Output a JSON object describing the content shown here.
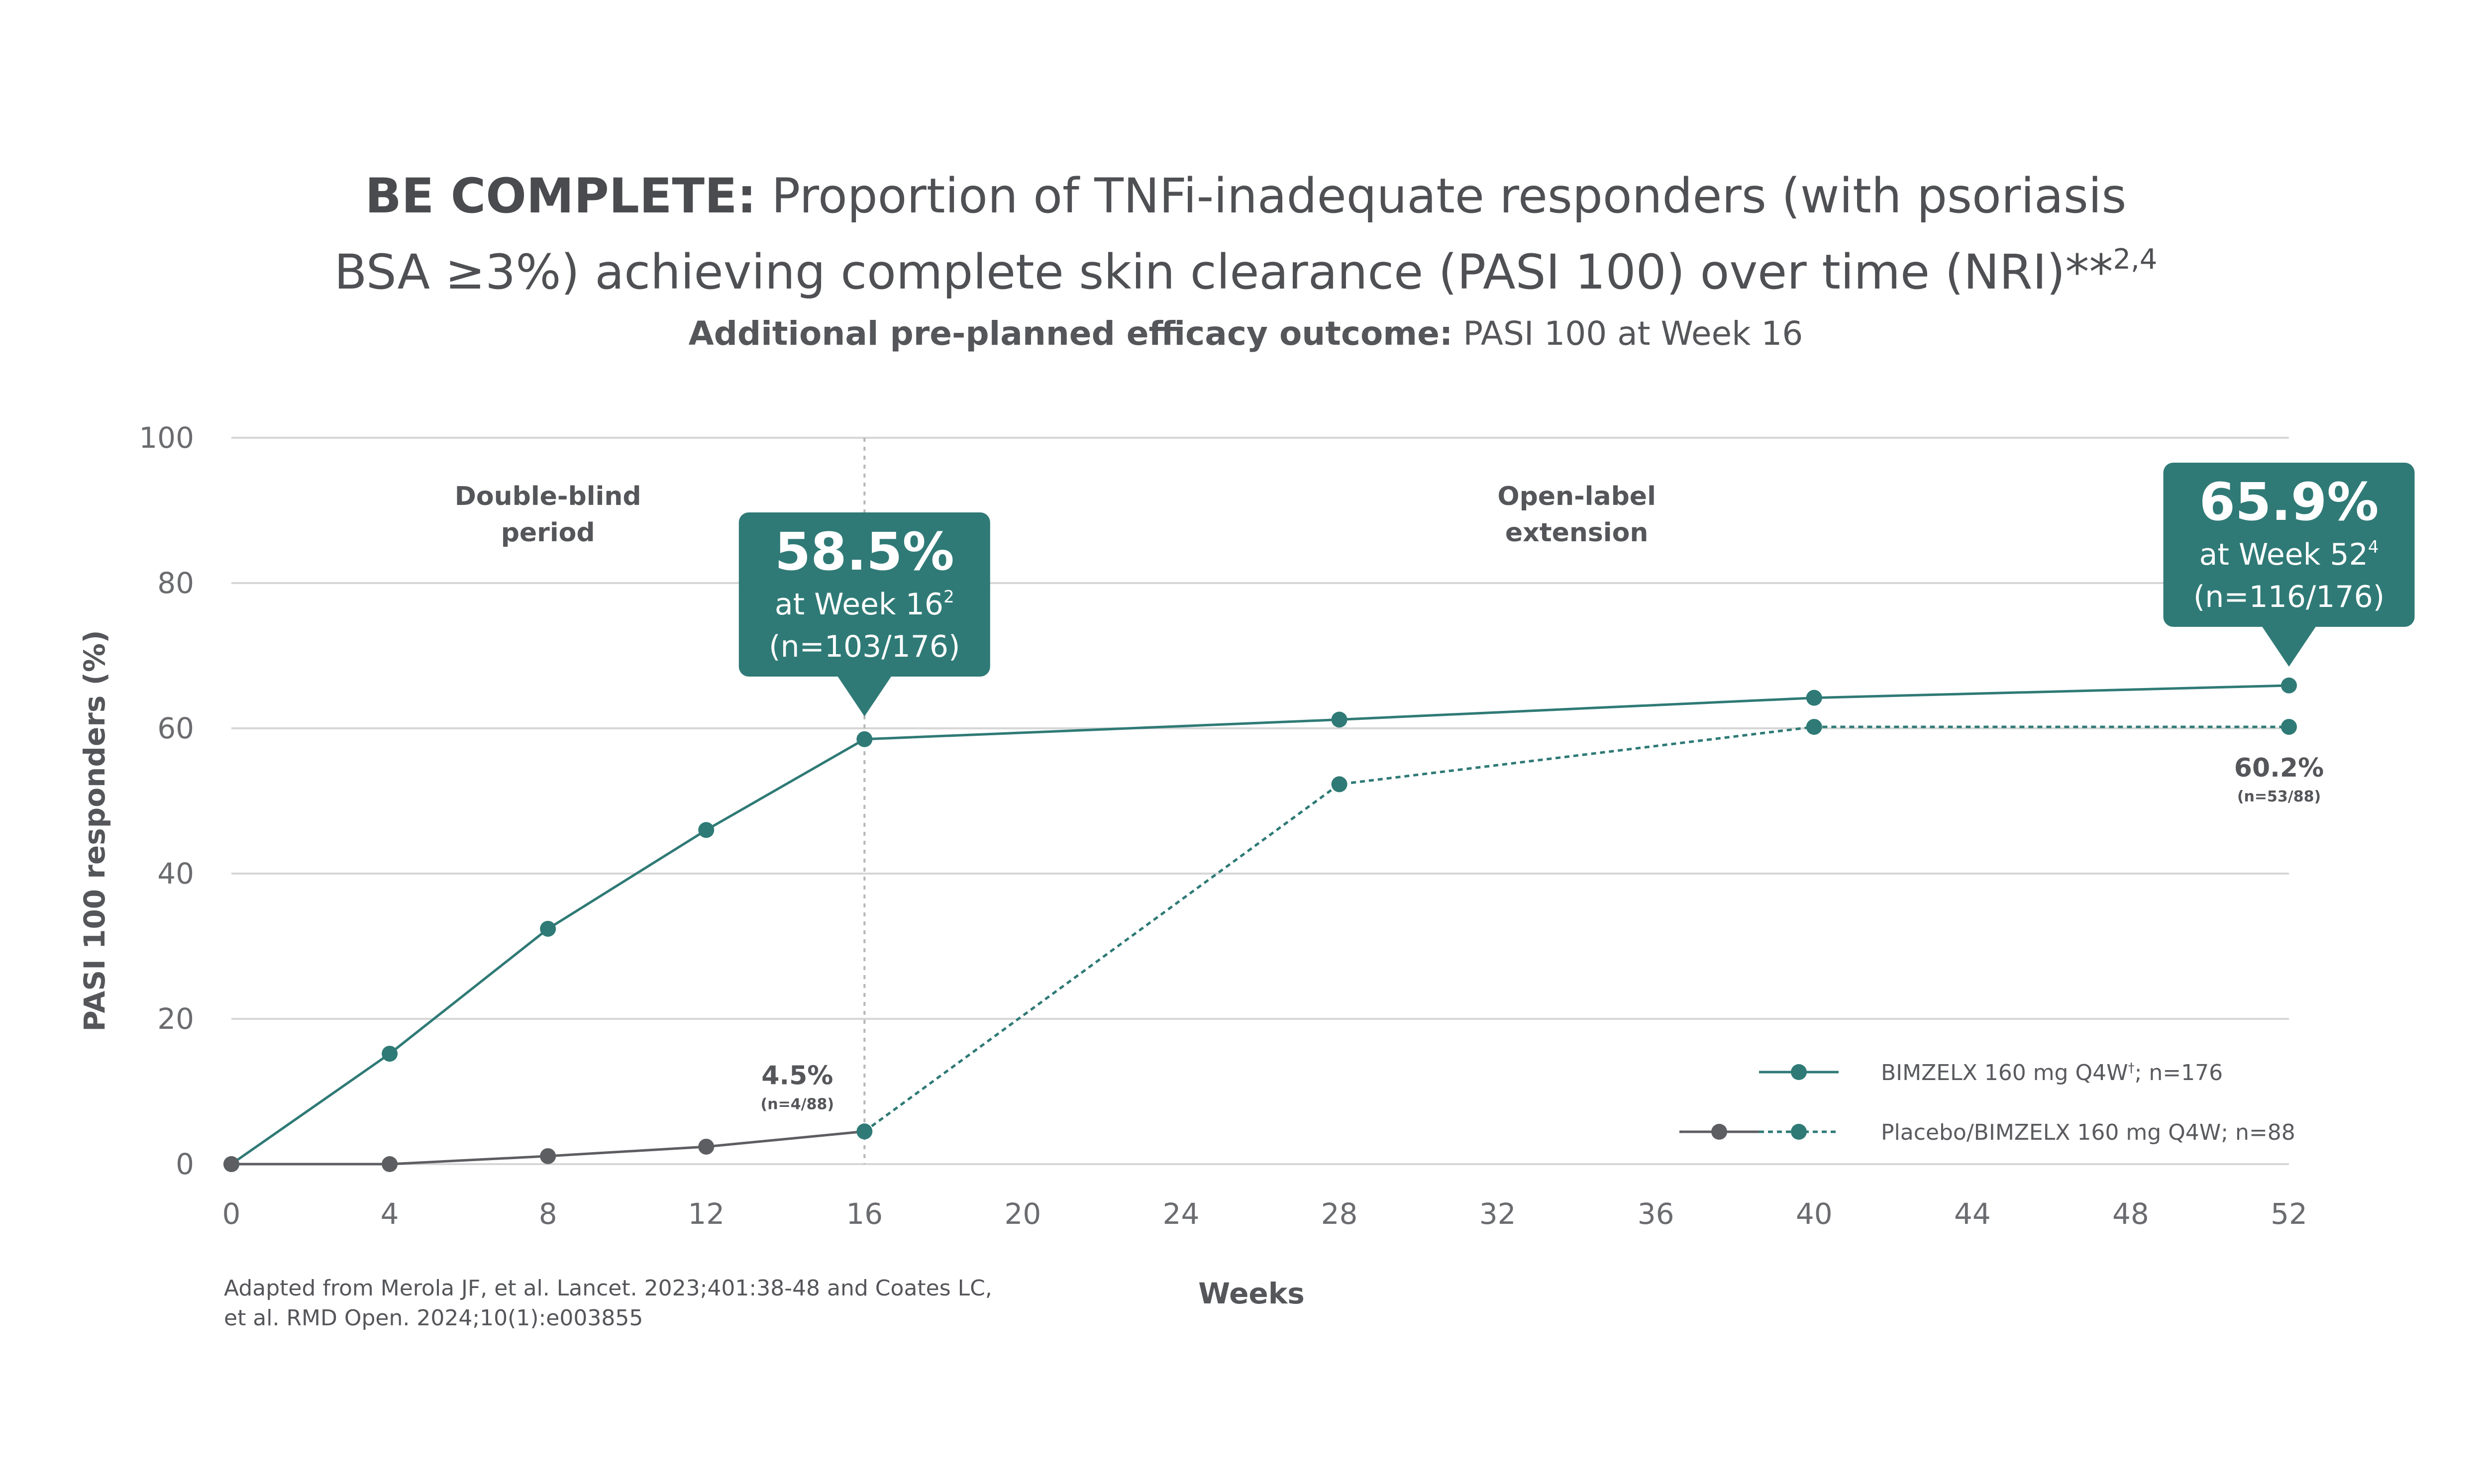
{
  "title": {
    "bold_part": "BE COMPLETE:",
    "line1_rest": "Proportion of TNFi-inadequate responders (with psoriasis",
    "line2": "BSA ≥3%) achieving complete skin clearance (PASI 100) over time (NRI)**",
    "line2_sup": "2,4"
  },
  "subtitle": {
    "bold_part": "Additional pre-planned efficacy outcome:",
    "rest": "PASI 100 at Week 16"
  },
  "colors": {
    "teal": "#2f7a76",
    "gray": "#5d5e62",
    "grid": "#d6d6d6",
    "callout_bg": "#2f7a76"
  },
  "chart_data": {
    "type": "line",
    "xlabel": "Weeks",
    "ylabel": "PASI 100 responders (%)",
    "xlim": [
      0,
      52
    ],
    "ylim": [
      0,
      100
    ],
    "x_ticks": [
      0,
      4,
      8,
      12,
      16,
      20,
      24,
      28,
      32,
      36,
      40,
      44,
      48,
      52
    ],
    "y_ticks": [
      0,
      20,
      40,
      60,
      80,
      100
    ],
    "grid": "horizontal",
    "divider_week": 16,
    "periods": [
      {
        "line1": "Double-blind",
        "line2": "period",
        "x": 8
      },
      {
        "line1": "Open-label",
        "line2": "extension",
        "x": 34
      }
    ],
    "series": [
      {
        "name": "BIMZELX 160 mg Q4W",
        "name_sup": "†",
        "name_rest": "; n=176",
        "color": "#2f7a76",
        "style": "solid",
        "points": [
          [
            0,
            0
          ],
          [
            4,
            15.2
          ],
          [
            8,
            32.4
          ],
          [
            12,
            46.0
          ],
          [
            16,
            58.5
          ],
          [
            28,
            61.2
          ],
          [
            40,
            64.2
          ],
          [
            52,
            65.9
          ]
        ]
      },
      {
        "name": "Placebo/BIMZELX 160 mg Q4W; n=88",
        "segments": [
          {
            "color": "#5d5e62",
            "style": "solid",
            "points": [
              [
                0,
                0
              ],
              [
                4,
                0
              ],
              [
                8,
                1.1
              ],
              [
                12,
                2.4
              ],
              [
                16,
                4.5
              ]
            ]
          },
          {
            "color": "#2f7a76",
            "style": "dashed",
            "points": [
              [
                16,
                4.5
              ],
              [
                28,
                52.3
              ],
              [
                40,
                60.2
              ],
              [
                52,
                60.2
              ]
            ]
          }
        ]
      }
    ],
    "callouts": [
      {
        "value": "58.5%",
        "line2": "at Week 16",
        "line2_sup": "2",
        "line3": "(n=103/176)",
        "x": 16,
        "y": 58.5
      },
      {
        "value": "65.9%",
        "line2": "at Week 52",
        "line2_sup": "4",
        "line3": "(n=116/176)",
        "x": 52,
        "y": 65.9
      }
    ],
    "point_labels": [
      {
        "value": "4.5%",
        "sub": "(n=4/88)",
        "x": 16,
        "y": 4.5
      },
      {
        "value": "60.2%",
        "sub": "(n=53/88)",
        "x": 52,
        "y": 60.2
      }
    ]
  },
  "footnote": {
    "line1": "Adapted from Merola JF, et al. Lancet. 2023;401:38-48 and Coates LC,",
    "line2": "et al. RMD Open. 2024;10(1):e003855"
  }
}
